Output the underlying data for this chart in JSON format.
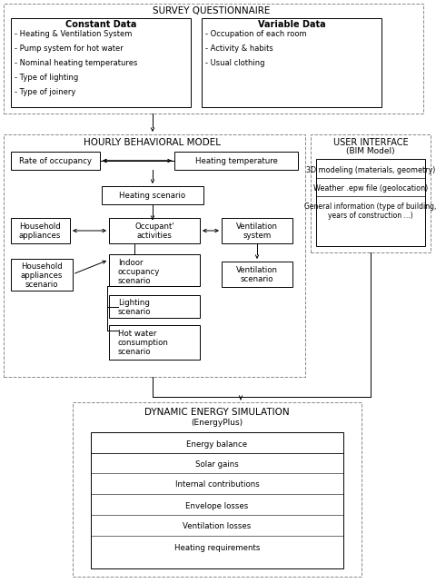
{
  "bg_color": "#ffffff",
  "survey_title": "SURVEY QUESTIONNAIRE",
  "const_title": "Constant Data",
  "var_title": "Variable Data",
  "const_lines": [
    "- Heating & Ventilation System",
    "- Pump system for hot water",
    "- Nominal heating temperatures",
    "- Type of lighting",
    "- Type of joinery"
  ],
  "var_lines": [
    "- Occupation of each room",
    "- Activity & habits",
    "- Usual clothing"
  ],
  "behav_title": "HOURLY BEHAVIORAL MODEL",
  "ui_title": "USER INTERFACE",
  "ui_subtitle": "(BIM Model)",
  "ui_lines": [
    "3D modeling (materials, geometry)",
    "Weather .epw file (geolocation)",
    "General information (type of building,\nyears of construction ...)"
  ],
  "des_title": "DYNAMIC ENERGY SIMULATION",
  "des_subtitle": "(EnergyPlus)",
  "energy_items": [
    "Energy balance",
    "Solar gains",
    "Internal contributions",
    "Envelope losses",
    "Ventilation losses",
    "Heating requirements"
  ]
}
